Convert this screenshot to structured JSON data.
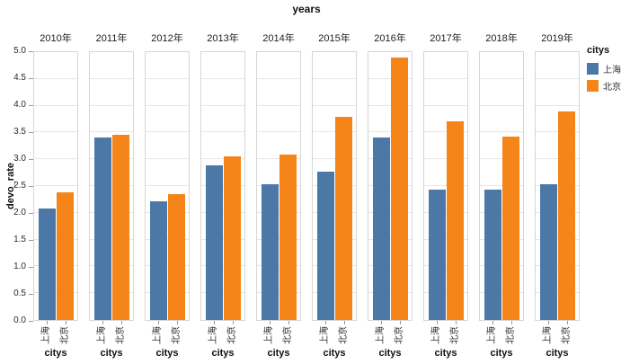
{
  "title": "years",
  "y_axis": {
    "label": "devo_rate",
    "ticks": [
      "5.0",
      "4.5",
      "4.0",
      "3.5",
      "3.0",
      "2.5",
      "2.0",
      "1.5",
      "1.0",
      "0.5",
      "0.0"
    ]
  },
  "x_axis": {
    "label": "citys",
    "categories": [
      "上海",
      "北京"
    ]
  },
  "legend": {
    "title": "citys",
    "items": [
      {
        "label": "上海",
        "color": "#4c78a8"
      },
      {
        "label": "北京",
        "color": "#f58518"
      }
    ]
  },
  "colors": {
    "shanghai_blue": "#4c78a8",
    "beijing_orange": "#f58518",
    "panel_border": "#d6d6d6",
    "gridline": "#e6e6e6"
  },
  "chart_data": {
    "type": "bar",
    "facet_field": "years",
    "categories": [
      "2010年",
      "2011年",
      "2012年",
      "2013年",
      "2014年",
      "2015年",
      "2016年",
      "2017年",
      "2018年",
      "2019年"
    ],
    "x_categories": [
      "上海",
      "北京"
    ],
    "series": [
      {
        "name": "上海",
        "color": "#4c78a8",
        "values": [
          2.08,
          3.4,
          2.22,
          2.88,
          2.53,
          2.77,
          3.41,
          2.43,
          2.44,
          2.54
        ]
      },
      {
        "name": "北京",
        "color": "#f58518",
        "values": [
          2.38,
          3.45,
          2.35,
          3.06,
          3.08,
          3.79,
          4.9,
          3.71,
          3.43,
          3.89
        ]
      }
    ],
    "title": "years",
    "xlabel": "citys",
    "ylabel": "devo_rate",
    "ylim": [
      0,
      5
    ],
    "ytick_step": 0.5,
    "grid": true,
    "legend_position": "right"
  }
}
